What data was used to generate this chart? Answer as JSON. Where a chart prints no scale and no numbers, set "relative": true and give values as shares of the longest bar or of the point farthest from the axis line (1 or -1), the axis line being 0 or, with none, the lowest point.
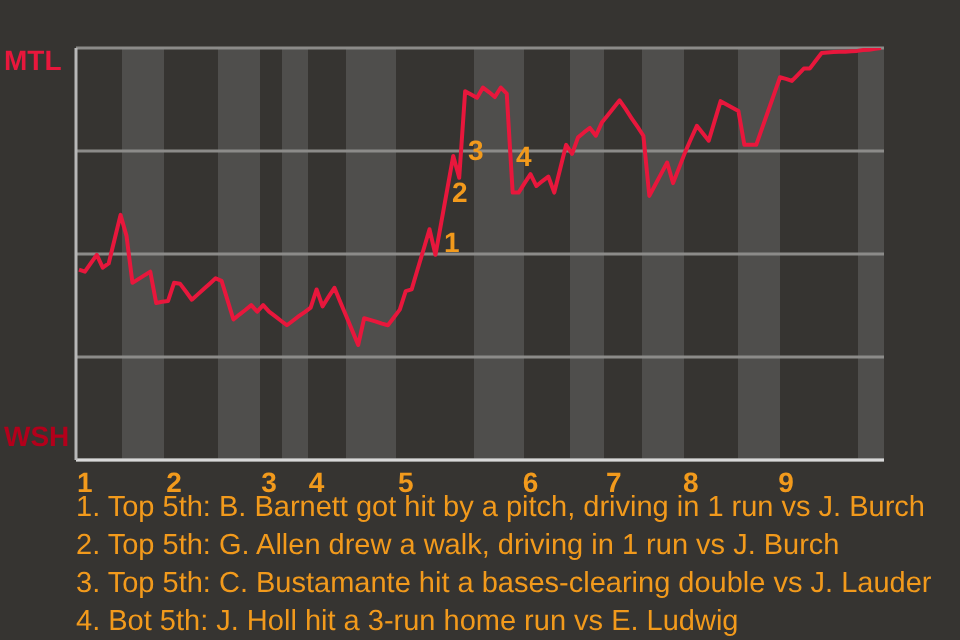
{
  "chart_data": {
    "type": "line",
    "relative": true,
    "categories": [
      null,
      "1",
      null,
      null,
      null,
      null,
      null,
      null,
      null,
      null,
      null,
      null,
      null,
      null,
      null,
      null,
      "2",
      null,
      null,
      null,
      null,
      null,
      null,
      null,
      null,
      null,
      null,
      null,
      null,
      null,
      null,
      null,
      "3",
      null,
      null,
      null,
      null,
      null,
      null,
      null,
      "4",
      null,
      null,
      null,
      null,
      null,
      null,
      null,
      null,
      null,
      null,
      null,
      null,
      null,
      null,
      "5",
      null,
      null,
      null,
      null,
      null,
      null,
      null,
      null,
      null,
      null,
      null,
      null,
      null,
      null,
      null,
      null,
      null,
      null,
      null,
      null,
      "6",
      null,
      null,
      null,
      null,
      null,
      null,
      null,
      null,
      null,
      null,
      null,
      null,
      null,
      "7",
      null,
      null,
      null,
      null,
      null,
      null,
      null,
      null,
      null,
      null,
      null,
      null,
      "8",
      null,
      null,
      null,
      null,
      null,
      null,
      null,
      null,
      null,
      null,
      null,
      null,
      null,
      null,
      null,
      "9",
      null,
      null,
      null,
      null,
      null,
      null,
      null,
      null,
      null,
      null,
      null,
      null,
      null,
      null,
      null,
      null
    ],
    "grid": "y",
    "marker": "none",
    "line_style": "solid",
    "series": [
      {
        "color": "#e8173c",
        "values": [
          0.462,
          0.457,
          0.478,
          0.498,
          0.467,
          0.477,
          0.536,
          0.595,
          0.544,
          0.43,
          0.439,
          0.448,
          0.457,
          0.381,
          0.384,
          0.386,
          0.43,
          0.428,
          0.409,
          0.389,
          0.402,
          0.415,
          0.428,
          0.441,
          0.435,
          0.388,
          0.341,
          0.353,
          0.364,
          0.376,
          0.36,
          0.376,
          0.36,
          0.349,
          0.338,
          0.327,
          0.338,
          0.349,
          0.359,
          0.37,
          0.414,
          0.373,
          0.396,
          0.418,
          0.383,
          0.349,
          0.314,
          0.279,
          0.344,
          0.34,
          0.336,
          0.331,
          0.327,
          0.346,
          0.365,
          0.41,
          0.414,
          0.463,
          0.511,
          0.56,
          0.498,
          0.578,
          0.658,
          0.738,
          0.685,
          0.895,
          0.887,
          0.879,
          0.904,
          0.893,
          0.881,
          0.904,
          0.889,
          0.649,
          0.649,
          0.672,
          0.694,
          0.665,
          0.677,
          0.688,
          0.649,
          0.707,
          0.765,
          0.743,
          0.783,
          0.795,
          0.806,
          0.787,
          0.819,
          0.837,
          0.855,
          0.873,
          0.852,
          0.83,
          0.809,
          0.787,
          0.641,
          0.668,
          0.695,
          0.722,
          0.672,
          0.709,
          0.746,
          0.779,
          0.811,
          0.793,
          0.775,
          0.823,
          0.871,
          0.863,
          0.855,
          0.847,
          0.765,
          0.765,
          0.765,
          0.806,
          0.847,
          0.888,
          0.929,
          0.925,
          0.92,
          0.935,
          0.95,
          0.95,
          0.969,
          0.988,
          0.989,
          0.99,
          0.991,
          0.991,
          0.992,
          0.993,
          0.995,
          0.996,
          0.998,
          1
        ]
      }
    ],
    "annotations": [
      "MTL",
      "WSH",
      "1",
      "2",
      "3",
      "4",
      "1. Top 5th: B. Barnett got hit by a pitch, driving in 1 run vs J. Burch",
      "2. Top 5th: G. Allen drew a walk, driving in 1 run vs J. Burch",
      "3. Top 5th: C. Bustamante hit a bases-clearing double vs J. Lauder",
      "4. Bot 5th: J. Holl hit a 3-run home run vs E. Ludwig"
    ]
  }
}
